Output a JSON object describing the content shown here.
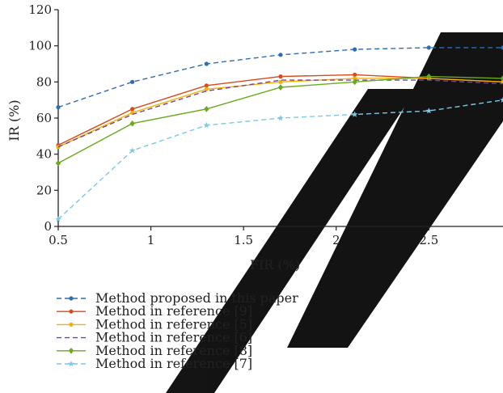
{
  "chart_data": {
    "type": "line",
    "xlabel": "FIR (%)",
    "ylabel": "IR (%)",
    "xlim": [
      0.5,
      2.9
    ],
    "ylim": [
      0,
      120
    ],
    "xticks": [
      0.5,
      1,
      1.5,
      2,
      2.5
    ],
    "xtick_labels": [
      "0.5",
      "1",
      "1.5",
      "2",
      "2.5"
    ],
    "yticks": [
      0,
      20,
      40,
      60,
      80,
      100,
      120
    ],
    "ytick_labels": [
      "0",
      "20",
      "40",
      "60",
      "80",
      "100",
      "120"
    ],
    "legend_position": "bottom",
    "grid": false,
    "x": [
      0.5,
      0.9,
      1.3,
      1.7,
      2.1,
      2.5,
      2.9
    ],
    "series": [
      {
        "name": "Method proposed in this paper",
        "color": "#2e6db4",
        "dash": "dashed",
        "marker": "dot",
        "values": [
          66,
          80,
          90,
          95,
          98,
          99,
          99
        ]
      },
      {
        "name": "Method in reference [9]",
        "color": "#d84a1b",
        "dash": "solid",
        "marker": "dot",
        "values": [
          45,
          65,
          78,
          83,
          84,
          82,
          80
        ]
      },
      {
        "name": "Method in reference [5]",
        "color": "#f0b400",
        "dash": "solid",
        "marker": "dot",
        "values": [
          44,
          63,
          76,
          80,
          82,
          82,
          80
        ]
      },
      {
        "name": "Method in reference [6]",
        "color": "#7a3fa0",
        "dash": "dashed",
        "marker": "none",
        "values": [
          44,
          62,
          75,
          81,
          81,
          81,
          79
        ]
      },
      {
        "name": "Method in reference [8]",
        "color": "#6aaa1e",
        "dash": "solid",
        "marker": "diamond",
        "values": [
          35,
          57,
          65,
          77,
          80,
          83,
          82
        ]
      },
      {
        "name": "Method in reference [7]",
        "color": "#7cc8e6",
        "dash": "dashed",
        "marker": "star",
        "values": [
          4,
          42,
          56,
          60,
          62,
          64,
          70
        ]
      }
    ]
  }
}
